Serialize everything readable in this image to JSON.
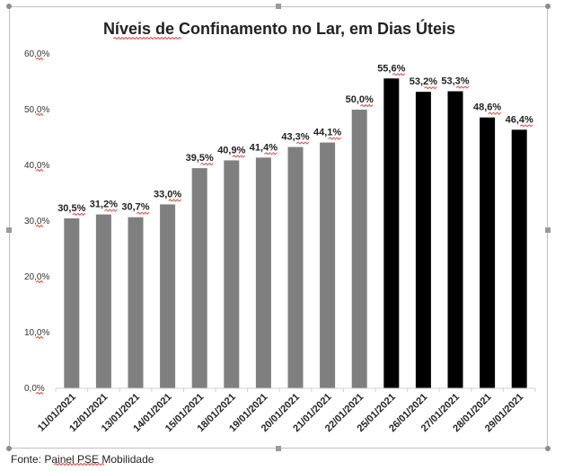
{
  "chart_data": {
    "type": "bar",
    "title": "Níveis de Confinamento no Lar, em Dias Úteis",
    "xlabel": "",
    "ylabel": "",
    "ylim": [
      0,
      60
    ],
    "yticks": [
      "0,0%",
      "10,0%",
      "20,0%",
      "30,0%",
      "40,0%",
      "50,0%",
      "60,0%"
    ],
    "grid": false,
    "legend": "none",
    "categories": [
      "11/01/2021",
      "12/01/2021",
      "13/01/2021",
      "14/01/2021",
      "15/01/2021",
      "18/01/2021",
      "19/01/2021",
      "20/01/2021",
      "21/01/2021",
      "22/01/2021",
      "25/01/2021",
      "26/01/2021",
      "27/01/2021",
      "28/01/2021",
      "29/01/2021"
    ],
    "values": [
      30.5,
      31.2,
      30.7,
      33.0,
      39.5,
      40.9,
      41.4,
      43.3,
      44.1,
      50.0,
      55.6,
      53.2,
      53.3,
      48.6,
      46.4
    ],
    "data_labels": [
      "30,5%",
      "31,2%",
      "30,7%",
      "33,0%",
      "39,5%",
      "40,9%",
      "41,4%",
      "43,3%",
      "44,1%",
      "50,0%",
      "55,6%",
      "53,2%",
      "53,3%",
      "48,6%",
      "46,4%"
    ],
    "colors": [
      "#7f7f7f",
      "#7f7f7f",
      "#7f7f7f",
      "#7f7f7f",
      "#7f7f7f",
      "#7f7f7f",
      "#7f7f7f",
      "#7f7f7f",
      "#7f7f7f",
      "#7f7f7f",
      "#000000",
      "#000000",
      "#000000",
      "#000000",
      "#000000"
    ]
  },
  "source": "Fonte: Painel PSE Mobilidade"
}
